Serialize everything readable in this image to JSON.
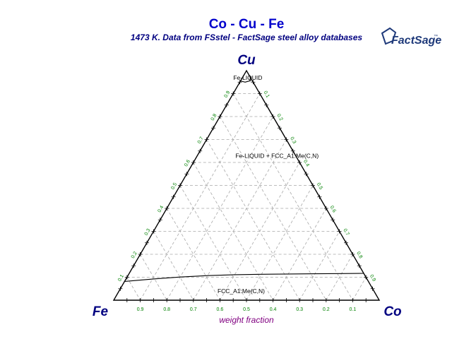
{
  "chart_data": {
    "type": "ternary",
    "title": "Co - Cu - Fe",
    "subtitle": "1473 K.  Data from FSstel - FactSage steel alloy databases",
    "logo": "FactSage",
    "logo_mark": "™",
    "xlabel": "weight fraction",
    "vertices": {
      "top": "Cu",
      "left": "Fe",
      "right": "Co"
    },
    "ticks": [
      0.1,
      0.2,
      0.3,
      0.4,
      0.5,
      0.6,
      0.7,
      0.8,
      0.9
    ],
    "bottom_tick_labels": [
      "0.9",
      "0.8",
      "0.7",
      "0.6",
      "0.5",
      "0.4",
      "0.3",
      "0.2",
      "0.1"
    ],
    "left_tick_labels": [
      "0.1",
      "0.2",
      "0.3",
      "0.4",
      "0.5",
      "0.6",
      "0.7",
      "0.8",
      "0.9"
    ],
    "right_tick_labels": [
      "0.1",
      "0.2",
      "0.3",
      "0.4",
      "0.5",
      "0.6",
      "0.7",
      "0.8",
      "0.9"
    ],
    "grid": true,
    "region_labels": [
      {
        "text": "Fe-LIQUID",
        "composition": {
          "Cu": 0.97,
          "Co": 0.02
        }
      },
      {
        "text": "Fe-LIQUID + FCC_A1:Me(C,N)",
        "composition": {
          "Cu": 0.63,
          "Co": 0.3
        }
      },
      {
        "text": "FCC_A1:Me(C,N)",
        "composition": {
          "Cu": 0.04,
          "Co": 0.46
        }
      }
    ],
    "boundaries": [
      {
        "name": "FCC_A1 solubility limit",
        "points": [
          {
            "Cu": 0.082,
            "Co": 0.0
          },
          {
            "Cu": 0.092,
            "Co": 0.1
          },
          {
            "Cu": 0.101,
            "Co": 0.2
          },
          {
            "Cu": 0.107,
            "Co": 0.3
          },
          {
            "Cu": 0.111,
            "Co": 0.4
          },
          {
            "Cu": 0.113,
            "Co": 0.5
          },
          {
            "Cu": 0.114,
            "Co": 0.6
          },
          {
            "Cu": 0.115,
            "Co": 0.7
          },
          {
            "Cu": 0.116,
            "Co": 0.8
          },
          {
            "Cu": 0.117,
            "Co": 0.883
          }
        ]
      },
      {
        "name": "Fe-LIQUID boundary",
        "points": [
          {
            "Cu": 0.955,
            "Co": 0.0
          },
          {
            "Cu": 0.95,
            "Co": 0.02
          },
          {
            "Cu": 0.956,
            "Co": 0.036
          },
          {
            "Cu": 0.972,
            "Co": 0.028
          }
        ]
      }
    ],
    "colors": {
      "title": "#0000cc",
      "subtitle": "#000080",
      "vertex_labels": "#000080",
      "tick_labels": "#008000",
      "xlabel": "#800080",
      "grid": "#a8a8a8",
      "frame": "#000000",
      "logo": "#1f3a7a"
    }
  }
}
